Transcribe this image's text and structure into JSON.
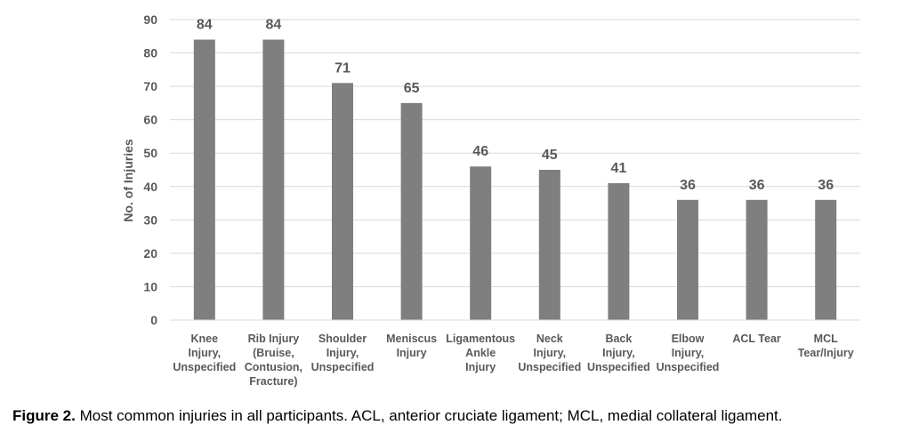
{
  "chart_data": {
    "type": "bar",
    "categories": [
      [
        "Knee",
        "Injury,",
        "Unspecified"
      ],
      [
        "Rib Injury",
        "(Bruise,",
        "Contusion,",
        "Fracture)"
      ],
      [
        "Shoulder",
        "Injury,",
        "Unspecified"
      ],
      [
        "Meniscus",
        "Injury"
      ],
      [
        "Ligamentous",
        "Ankle",
        "Injury"
      ],
      [
        "Neck",
        "Injury,",
        "Unspecified"
      ],
      [
        "Back",
        "Injury,",
        "Unspecified"
      ],
      [
        "Elbow",
        "Injury,",
        "Unspecified"
      ],
      [
        "ACL Tear"
      ],
      [
        "MCL",
        "Tear/Injury"
      ]
    ],
    "values": [
      84,
      84,
      71,
      65,
      46,
      45,
      41,
      36,
      36,
      36
    ],
    "ylabel": "No. of Injuries",
    "ylim": [
      0,
      90
    ],
    "yticks": [
      0,
      10,
      20,
      30,
      40,
      50,
      60,
      70,
      80,
      90
    ],
    "grid": true,
    "bar_color": "#7f7f7f"
  },
  "caption": {
    "label": "Figure 2.",
    "text": " Most common injuries in all participants. ACL, anterior cruciate ligament; MCL, medial collateral ligament."
  }
}
